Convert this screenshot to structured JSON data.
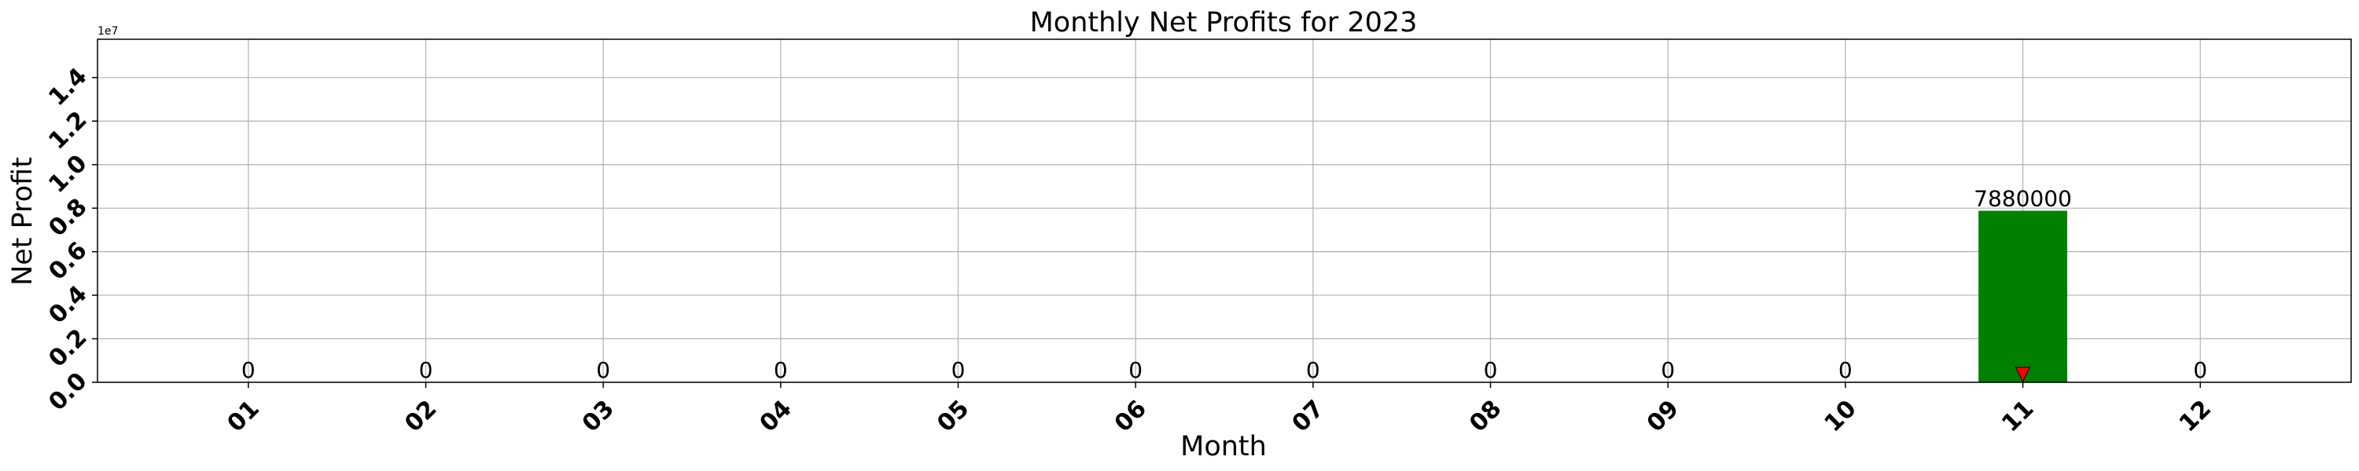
{
  "chart_data": {
    "type": "bar",
    "title": "Monthly Net Profits for 2023",
    "xlabel": "Month",
    "ylabel": "Net Profit",
    "scale_label": "1e7",
    "categories": [
      "01",
      "02",
      "03",
      "04",
      "05",
      "06",
      "07",
      "08",
      "09",
      "10",
      "11",
      "12"
    ],
    "values": [
      0,
      0,
      0,
      0,
      0,
      0,
      0,
      0,
      0,
      0,
      7880000,
      0
    ],
    "data_labels": [
      "0",
      "0",
      "0",
      "0",
      "0",
      "0",
      "0",
      "0",
      "0",
      "0",
      "7880000",
      "0"
    ],
    "yticks": [
      0,
      2000000,
      4000000,
      6000000,
      8000000,
      10000000,
      12000000,
      14000000
    ],
    "ytick_labels": [
      "0.0",
      "0.2",
      "0.4",
      "0.6",
      "0.8",
      "1.0",
      "1.2",
      "1.4"
    ],
    "ylim": [
      0,
      15760000
    ],
    "grid": true,
    "bar_color": "#008000",
    "marker": {
      "category": "11",
      "value": 0,
      "color": "#ff0000",
      "shape": "triangle-down"
    }
  }
}
